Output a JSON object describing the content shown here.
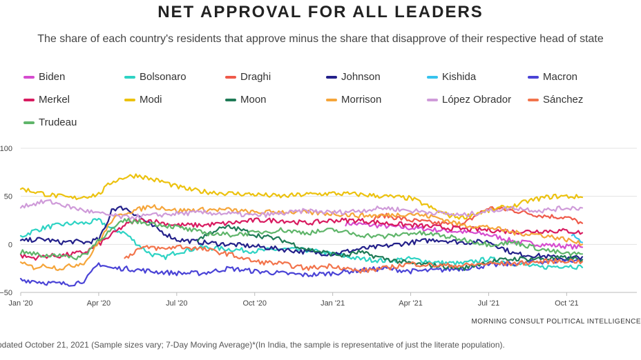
{
  "title": "NET APPROVAL FOR ALL LEADERS",
  "subtitle": "The share of each country's residents that approve minus the share that disapprove of their respective head of state",
  "source": "MORNING CONSULT POLITICAL INTELLIGENCE",
  "footnote": "pdated October 21, 2021 (Sample sizes vary; 7-Day Moving Average)*(In India, the sample is representative of just the literate population).",
  "legend": [
    {
      "name": "Biden",
      "color": "#d64ccf"
    },
    {
      "name": "Bolsonaro",
      "color": "#2ed3c4"
    },
    {
      "name": "Draghi",
      "color": "#ef5a4a"
    },
    {
      "name": "Johnson",
      "color": "#23208a"
    },
    {
      "name": "Kishida",
      "color": "#36c3ee"
    },
    {
      "name": "Macron",
      "color": "#4a43d6"
    },
    {
      "name": "Merkel",
      "color": "#d81b60"
    },
    {
      "name": "Modi",
      "color": "#ecc20f"
    },
    {
      "name": "Moon",
      "color": "#1f7a56"
    },
    {
      "name": "Morrison",
      "color": "#f5a53a"
    },
    {
      "name": "López Obrador",
      "color": "#cf9bd9"
    },
    {
      "name": "Sánchez",
      "color": "#f2744c"
    },
    {
      "name": "Trudeau",
      "color": "#5fb56a"
    }
  ],
  "chart_data": {
    "type": "line",
    "title": "NET APPROVAL FOR ALL LEADERS",
    "xlabel": "",
    "ylabel": "",
    "ylim": [
      -50,
      100
    ],
    "xlim": [
      0,
      23.7
    ],
    "yticks": [
      "100",
      "50",
      "0",
      "−50"
    ],
    "ytick_values": [
      100,
      50,
      0,
      -50
    ],
    "xticks": [
      "Jan '20",
      "Apr '20",
      "Jul '20",
      "Oct '20",
      "Jan '21",
      "Apr '21",
      "Jul '21",
      "Oct '21"
    ],
    "xtick_values": [
      0,
      3,
      6,
      9,
      12,
      15,
      18,
      21
    ],
    "grid": "horizontal",
    "x_unit": "months since Jan 2020",
    "series": [
      {
        "name": "Biden",
        "color": "#d64ccf",
        "x": [
          12.5,
          13.5,
          15,
          16,
          17,
          18,
          19,
          20,
          21,
          21.6
        ],
        "values": [
          22,
          20,
          17,
          15,
          13,
          10,
          3,
          0,
          -2,
          -3
        ]
      },
      {
        "name": "Bolsonaro",
        "color": "#2ed3c4",
        "x": [
          0,
          0.5,
          1,
          1.5,
          2,
          2.5,
          3,
          3.5,
          4,
          4.5,
          5,
          5.5,
          6,
          7,
          8,
          9,
          10,
          11,
          12,
          13,
          14,
          15,
          16,
          17,
          18,
          19,
          20,
          21,
          21.6
        ],
        "values": [
          8,
          14,
          18,
          20,
          22,
          22,
          25,
          16,
          12,
          0,
          -10,
          -14,
          -8,
          -3,
          -5,
          -7,
          -5,
          -6,
          -10,
          -15,
          -17,
          -15,
          -19,
          -20,
          -15,
          -20,
          -24,
          -22,
          -24
        ]
      },
      {
        "name": "Draghi",
        "color": "#ef5a4a",
        "x": [
          13.6,
          14,
          15,
          16,
          17,
          17.5,
          18,
          19,
          20,
          21,
          21.6
        ],
        "values": [
          28,
          30,
          25,
          22,
          20,
          30,
          38,
          35,
          30,
          28,
          22
        ]
      },
      {
        "name": "Johnson",
        "color": "#23208a",
        "x": [
          0,
          0.5,
          1,
          1.5,
          2,
          2.5,
          3,
          3.3,
          3.5,
          4,
          4.5,
          5,
          5.5,
          6,
          7,
          8,
          9,
          10,
          11,
          12,
          13,
          14,
          15,
          16,
          17,
          18,
          19,
          20,
          21,
          21.6
        ],
        "values": [
          3,
          5,
          5,
          2,
          3,
          2,
          5,
          20,
          37,
          38,
          30,
          20,
          12,
          5,
          2,
          0,
          -2,
          -5,
          -8,
          -10,
          -5,
          -2,
          2,
          5,
          2,
          3,
          -10,
          -12,
          -15,
          -13
        ]
      },
      {
        "name": "Kishida",
        "color": "#36c3ee",
        "x": [
          21.2,
          21.4,
          21.6
        ],
        "values": [
          10,
          5,
          2
        ]
      },
      {
        "name": "Macron",
        "color": "#4a43d6",
        "x": [
          0,
          0.5,
          1,
          1.5,
          2,
          2.5,
          3,
          3.5,
          4,
          5,
          6,
          7,
          8,
          9,
          10,
          11,
          12,
          13,
          14,
          15,
          16,
          17,
          18,
          19,
          20,
          21,
          21.6
        ],
        "values": [
          -37,
          -38,
          -40,
          -41,
          -41,
          -37,
          -20,
          -25,
          -25,
          -28,
          -30,
          -30,
          -25,
          -28,
          -30,
          -32,
          -30,
          -27,
          -25,
          -28,
          -27,
          -25,
          -22,
          -20,
          -18,
          -17,
          -16
        ]
      },
      {
        "name": "Merkel",
        "color": "#d81b60",
        "x": [
          0,
          0.5,
          1,
          1.5,
          2,
          2.5,
          3,
          3.5,
          4,
          4.5,
          5,
          5.5,
          6,
          7,
          8,
          9,
          10,
          11,
          12,
          13,
          14,
          15,
          16,
          17,
          18,
          19,
          20,
          21,
          21.6
        ],
        "values": [
          -12,
          -14,
          -12,
          -12,
          -10,
          -8,
          0,
          10,
          20,
          25,
          25,
          22,
          20,
          20,
          22,
          25,
          25,
          22,
          25,
          25,
          22,
          20,
          18,
          16,
          15,
          13,
          14,
          14,
          12
        ]
      },
      {
        "name": "Modi",
        "color": "#ecc20f",
        "x": [
          0,
          0.5,
          1,
          1.5,
          2,
          2.5,
          3,
          3.5,
          4,
          4.5,
          5,
          5.5,
          6,
          6.5,
          7,
          8,
          9,
          10,
          11,
          12,
          13,
          14,
          15,
          15.5,
          16,
          16.5,
          17,
          17.5,
          18,
          18.5,
          19,
          19.5,
          20,
          20.5,
          21,
          21.6
        ],
        "values": [
          58,
          55,
          52,
          50,
          48,
          50,
          52,
          65,
          70,
          72,
          68,
          65,
          60,
          57,
          55,
          53,
          52,
          50,
          52,
          53,
          52,
          50,
          48,
          42,
          35,
          30,
          28,
          32,
          35,
          38,
          40,
          45,
          48,
          50,
          50,
          49
        ]
      },
      {
        "name": "Moon",
        "color": "#1f7a56",
        "x": [
          6.8,
          7.5,
          8,
          8.5,
          9,
          10,
          11,
          12,
          12.5,
          13,
          14,
          15,
          16,
          17,
          18,
          19,
          20,
          21,
          21.6
        ],
        "values": [
          5,
          15,
          18,
          15,
          10,
          5,
          -5,
          -10,
          -12,
          -8,
          -15,
          -20,
          -22,
          -25,
          -18,
          -15,
          -15,
          -14,
          -16
        ]
      },
      {
        "name": "Morrison",
        "color": "#f5a53a",
        "x": [
          0,
          0.5,
          1,
          1.5,
          2,
          2.5,
          3,
          3.5,
          4,
          4.5,
          5,
          5.5,
          6,
          7,
          8,
          9,
          10,
          11,
          12,
          13,
          14,
          15,
          16,
          17,
          18,
          19,
          20,
          21,
          21.6
        ],
        "values": [
          -20,
          -24,
          -22,
          -25,
          -22,
          -18,
          2,
          25,
          33,
          36,
          40,
          38,
          35,
          36,
          36,
          33,
          34,
          33,
          32,
          30,
          30,
          32,
          28,
          20,
          18,
          12,
          10,
          5,
          0
        ]
      },
      {
        "name": "López Obrador",
        "color": "#cf9bd9",
        "x": [
          0,
          0.5,
          1,
          1.5,
          2,
          2.5,
          3,
          3.5,
          4,
          5,
          6,
          7,
          8,
          9,
          10,
          11,
          12,
          13,
          14,
          15,
          16,
          17,
          18,
          19,
          20,
          21,
          21.6
        ],
        "values": [
          40,
          42,
          45,
          42,
          38,
          35,
          32,
          30,
          28,
          30,
          32,
          33,
          32,
          30,
          32,
          35,
          33,
          35,
          38,
          35,
          33,
          30,
          35,
          38,
          35,
          38,
          38
        ]
      },
      {
        "name": "Sánchez",
        "color": "#f2744c",
        "x": [
          4,
          4.5,
          5,
          5.5,
          6,
          7,
          8,
          9,
          10,
          11,
          12,
          13,
          14,
          15,
          16,
          17,
          18,
          19,
          20,
          21,
          21.6
        ],
        "values": [
          -15,
          -5,
          -3,
          -5,
          -2,
          -5,
          -10,
          -18,
          -20,
          -25,
          -22,
          -28,
          -25,
          -20,
          -22,
          -22,
          -20,
          -20,
          -18,
          -17,
          -18
        ]
      },
      {
        "name": "Trudeau",
        "color": "#5fb56a",
        "x": [
          0,
          0.5,
          1,
          1.5,
          2,
          2.5,
          3,
          3.5,
          4,
          5,
          6,
          7,
          8,
          9,
          10,
          11,
          12,
          13,
          14,
          15,
          16,
          17,
          18,
          19,
          20,
          21,
          21.6
        ],
        "values": [
          -8,
          -10,
          -12,
          -10,
          -15,
          -10,
          5,
          15,
          25,
          22,
          18,
          12,
          10,
          12,
          15,
          12,
          15,
          10,
          8,
          12,
          10,
          5,
          0,
          2,
          -5,
          -10,
          -10
        ]
      }
    ]
  }
}
